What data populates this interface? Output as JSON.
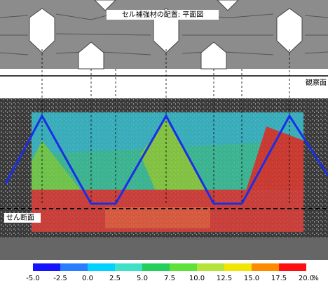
{
  "top_panel": {
    "title": "セル補強材の配置: 平面図"
  },
  "observation_label": "観察面",
  "shear_label": "せん断面",
  "colorbar": {
    "ticks": [
      "-5.0",
      "-2.5",
      "0.0",
      "2.5",
      "5.0",
      "7.5",
      "10.0",
      "12.5",
      "15.0",
      "17.5",
      "20.0"
    ],
    "unit": "%",
    "colors": [
      "#1414ff",
      "#2a7dff",
      "#00d2ff",
      "#3ee0c8",
      "#22cf5a",
      "#5ee23a",
      "#b4e43a",
      "#f2e600",
      "#ff8a00",
      "#ff1010"
    ]
  }
}
